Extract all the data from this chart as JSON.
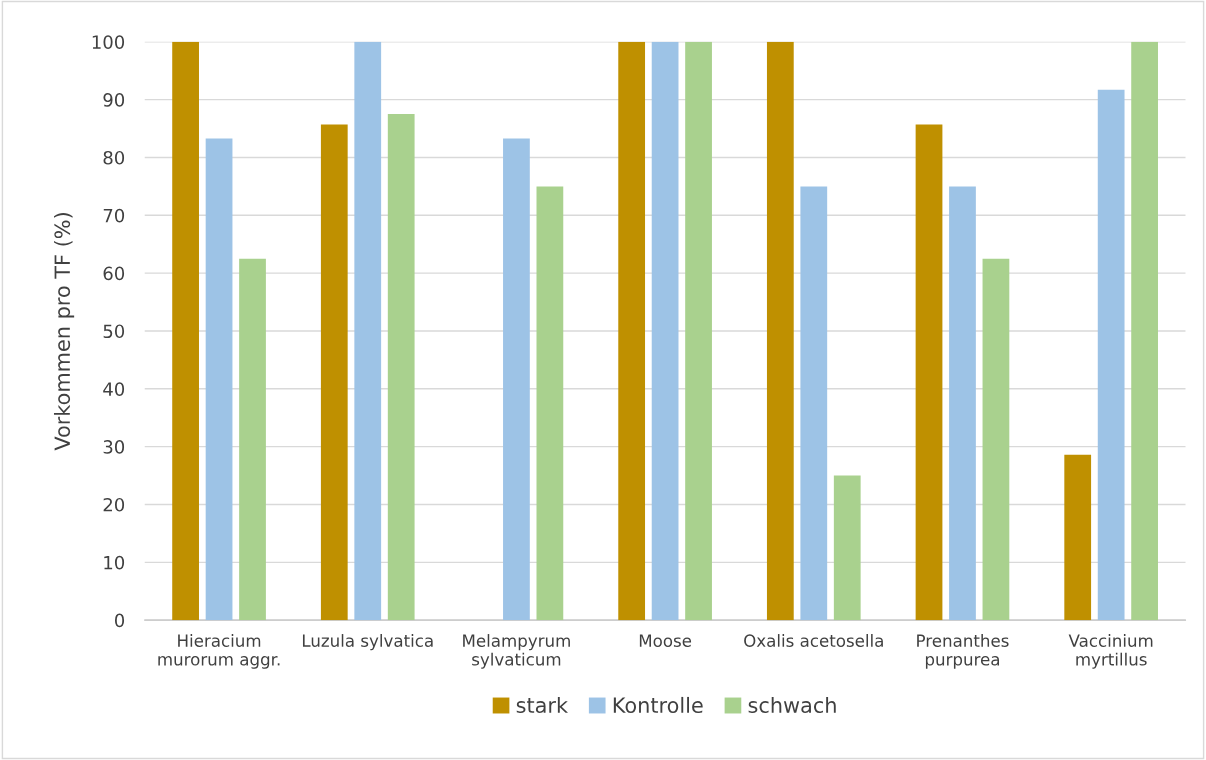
{
  "chart_data": {
    "type": "bar",
    "ylabel": "Vorkommen pro TF (%)",
    "categories": [
      "Hieracium\nmurorum aggr.",
      "Luzula sylvatica",
      "Melampyrum\nsylvaticum",
      "Moose",
      "Oxalis acetosella",
      "Prenanthes\npurpurea",
      "Vaccinium\nmyrtillus"
    ],
    "series": [
      {
        "name": "stark",
        "color": "#bf9000",
        "values": [
          100,
          85.7,
          0,
          100,
          100,
          85.7,
          28.6
        ]
      },
      {
        "name": "Kontrolle",
        "color": "#9dc3e6",
        "values": [
          83.3,
          100,
          83.3,
          100,
          75,
          75,
          91.7
        ]
      },
      {
        "name": "schwach",
        "color": "#a9d18e",
        "values": [
          62.5,
          87.5,
          75,
          100,
          25,
          62.5,
          100
        ]
      }
    ],
    "ylim": [
      0,
      100
    ],
    "yticks": [
      0,
      10,
      20,
      30,
      40,
      50,
      60,
      70,
      80,
      90,
      100
    ],
    "grid": "y",
    "legend": "bottom"
  }
}
